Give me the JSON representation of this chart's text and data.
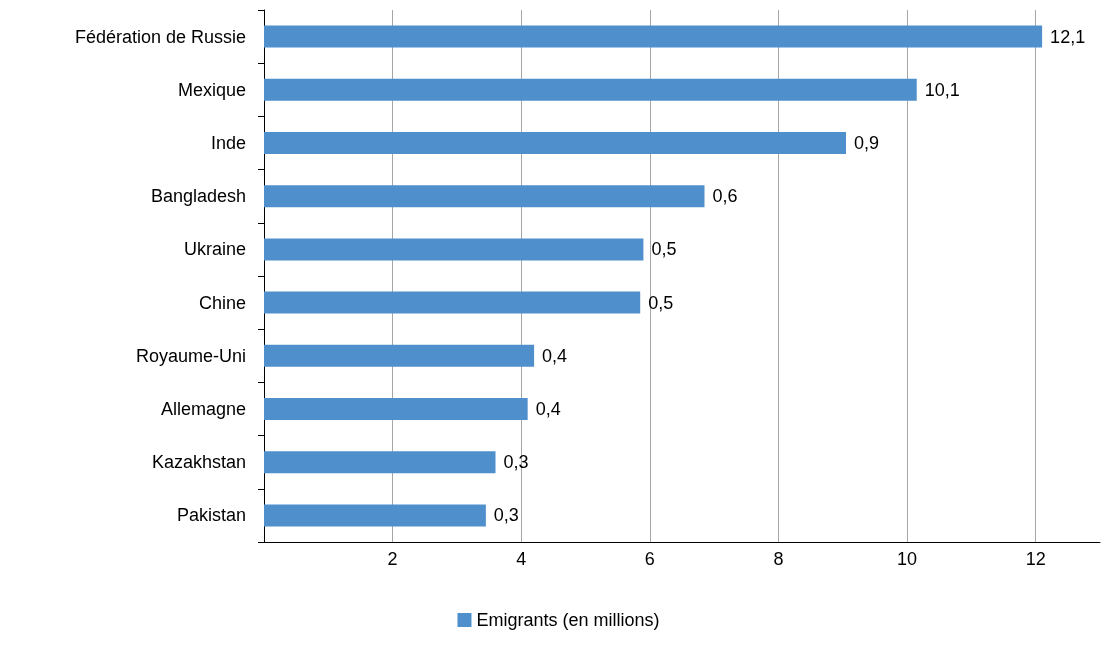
{
  "chart_data": {
    "type": "bar",
    "orientation": "horizontal",
    "categories": [
      "Fédération de Russie",
      "Mexique",
      "Inde",
      "Bangladesh",
      "Ukraine",
      "Chine",
      "Royaume-Uni",
      "Allemagne",
      "Kazakhstan",
      "Pakistan"
    ],
    "series": [
      {
        "name": "Emigrants (en millions)",
        "color": "#4f8fcc",
        "values": [
          12.1,
          10.15,
          9.05,
          6.85,
          5.9,
          5.85,
          4.2,
          4.1,
          3.6,
          3.45
        ]
      }
    ],
    "annotations": [
      {
        "text": "12,1",
        "x": 12.1,
        "y": "Fédération de Russie"
      },
      {
        "text": "10,1",
        "x": 10.15,
        "y": "Mexique"
      },
      {
        "text": "0,9",
        "x": 9.05,
        "y": "Inde"
      },
      {
        "text": "0,6",
        "x": 6.85,
        "y": "Bangladesh"
      },
      {
        "text": "0,5",
        "x": 5.9,
        "y": "Ukraine"
      },
      {
        "text": "0,5",
        "x": 5.85,
        "y": "Chine"
      },
      {
        "text": "0,4",
        "x": 4.2,
        "y": "Royaume-Uni"
      },
      {
        "text": "0,4",
        "x": 4.1,
        "y": "Allemagne"
      },
      {
        "text": "0,3",
        "x": 3.6,
        "y": "Kazakhstan"
      },
      {
        "text": "0,3",
        "x": 3.45,
        "y": "Pakistan"
      }
    ],
    "xlim": [
      0,
      13
    ],
    "xticks": [
      2,
      4,
      6,
      8,
      10,
      12
    ],
    "grid": "x",
    "legend": "bottom"
  }
}
